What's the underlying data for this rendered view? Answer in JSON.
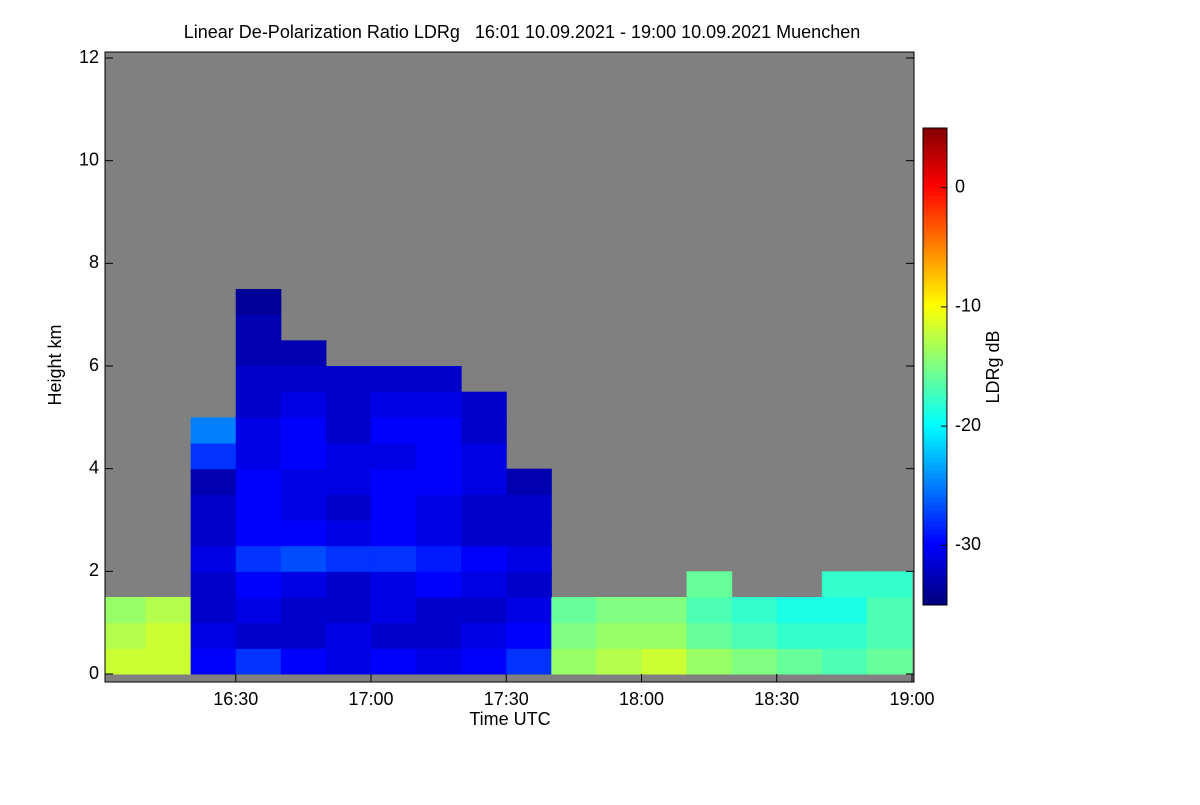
{
  "chart_data": {
    "type": "heatmap",
    "title": "Linear De-Polarization Ratio LDRg   16:01 10.09.2021 - 19:00 10.09.2021 Muenchen",
    "xlabel": "Time UTC",
    "ylabel": "Height km",
    "colorbar_label": "LDRg dB",
    "colormap": "jet",
    "no_data_color": "#808080",
    "xlim": [
      961,
      1140
    ],
    "ylim": [
      0,
      12
    ],
    "zlim": [
      -35,
      5
    ],
    "xticks": [
      {
        "value": 990,
        "label": "16:30"
      },
      {
        "value": 1020,
        "label": "17:00"
      },
      {
        "value": 1050,
        "label": "17:30"
      },
      {
        "value": 1080,
        "label": "18:00"
      },
      {
        "value": 1110,
        "label": "18:30"
      },
      {
        "value": 1140,
        "label": "19:00"
      }
    ],
    "yticks": [
      0,
      2,
      4,
      6,
      8,
      10,
      12
    ],
    "cticks": [
      0,
      -10,
      -20,
      -30
    ],
    "x_bins": [
      961,
      970,
      980,
      990,
      1000,
      1010,
      1020,
      1030,
      1040,
      1050,
      1060,
      1070,
      1080,
      1090,
      1100,
      1110,
      1120,
      1130,
      1140
    ],
    "y_bins": [
      0,
      0.5,
      1,
      1.5,
      2,
      2.5,
      3,
      3.5,
      4,
      4.5,
      5,
      5.5,
      6,
      6.5,
      7,
      7.5
    ],
    "z": [
      [
        -12,
        -12,
        -30,
        -28,
        -30,
        -31,
        -30,
        -31,
        -30,
        -28,
        -14,
        -13,
        -12,
        -14,
        -15,
        -16,
        -17,
        -16
      ],
      [
        -13,
        -12,
        -31,
        -32,
        -32,
        -31,
        -32,
        -32,
        -31,
        -30,
        -15,
        -14,
        -14,
        -16,
        -17,
        -18,
        -18,
        -17
      ],
      [
        -14,
        -13,
        -32,
        -31,
        -32,
        -32,
        -31,
        -32,
        -32,
        -31,
        -16,
        -15,
        -15,
        -17,
        -18,
        -19,
        -19,
        -17
      ],
      [
        null,
        null,
        -32,
        -30,
        -31,
        -32,
        -31,
        -30,
        -31,
        -32,
        null,
        null,
        null,
        -16,
        null,
        null,
        -18,
        -18
      ],
      [
        null,
        null,
        -31,
        -28,
        -27,
        -28,
        -28,
        -29,
        -30,
        -31,
        null,
        null,
        null,
        null,
        null,
        null,
        null,
        null
      ],
      [
        null,
        null,
        -32,
        -30,
        -30,
        -31,
        -30,
        -31,
        -32,
        -32,
        null,
        null,
        null,
        null,
        null,
        null,
        null,
        null
      ],
      [
        null,
        null,
        -32,
        -30,
        -31,
        -32,
        -30,
        -31,
        -32,
        -32,
        null,
        null,
        null,
        null,
        null,
        null,
        null,
        null
      ],
      [
        null,
        null,
        -33,
        -30,
        -31,
        -31,
        -30,
        -30,
        -31,
        -33,
        null,
        null,
        null,
        null,
        null,
        null,
        null,
        null
      ],
      [
        null,
        null,
        -28,
        -31,
        -30,
        -31,
        -31,
        -30,
        -31,
        null,
        null,
        null,
        null,
        null,
        null,
        null,
        null,
        null
      ],
      [
        null,
        null,
        -25,
        -31,
        -30,
        -32,
        -30,
        -30,
        -32,
        null,
        null,
        null,
        null,
        null,
        null,
        null,
        null,
        null
      ],
      [
        null,
        null,
        null,
        -32,
        -31,
        -32,
        -31,
        -31,
        -32,
        null,
        null,
        null,
        null,
        null,
        null,
        null,
        null,
        null
      ],
      [
        null,
        null,
        null,
        -32,
        -32,
        -32,
        -32,
        -32,
        null,
        null,
        null,
        null,
        null,
        null,
        null,
        null,
        null,
        null
      ],
      [
        null,
        null,
        null,
        -33,
        -33,
        null,
        null,
        null,
        null,
        null,
        null,
        null,
        null,
        null,
        null,
        null,
        null,
        null
      ],
      [
        null,
        null,
        null,
        -33,
        null,
        null,
        null,
        null,
        null,
        null,
        null,
        null,
        null,
        null,
        null,
        null,
        null,
        null
      ],
      [
        null,
        null,
        null,
        -34,
        null,
        null,
        null,
        null,
        null,
        null,
        null,
        null,
        null,
        null,
        null,
        null,
        null,
        null
      ]
    ]
  }
}
